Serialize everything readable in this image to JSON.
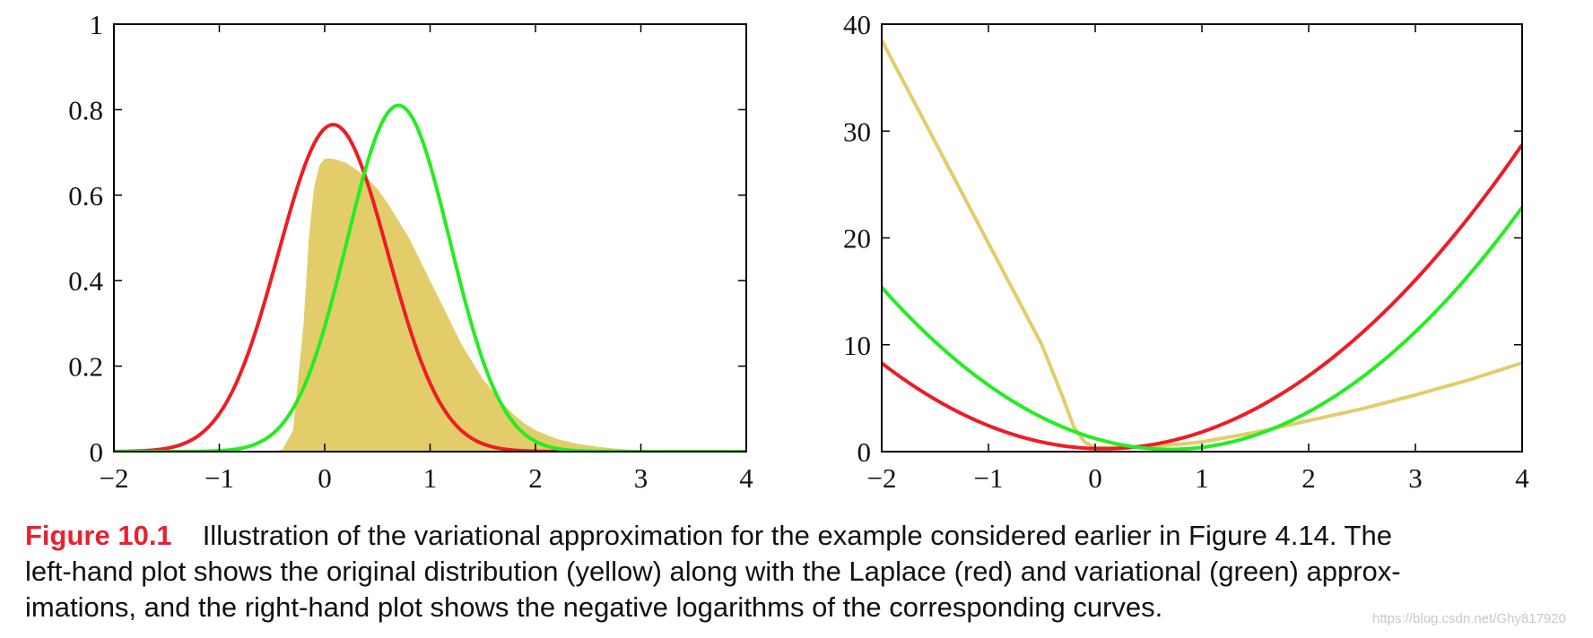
{
  "chart_data": [
    {
      "type": "line",
      "panel": "left",
      "xlim": [
        -2,
        4
      ],
      "ylim": [
        0,
        1
      ],
      "x_ticks": [
        "−2",
        "−1",
        "0",
        "1",
        "2",
        "3",
        "4"
      ],
      "x_tick_values": [
        -2,
        -1,
        0,
        1,
        2,
        3,
        4
      ],
      "y_ticks": [
        "0",
        "0.2",
        "0.4",
        "0.6",
        "0.8",
        "1"
      ],
      "y_tick_values": [
        0,
        0.2,
        0.4,
        0.6,
        0.8,
        1
      ],
      "series": [
        {
          "name": "original distribution (yellow)",
          "color": "#e3cd6a",
          "style": "filled-area",
          "x": [
            -2,
            -0.5,
            -0.4,
            -0.3,
            -0.2,
            -0.15,
            -0.1,
            -0.05,
            0,
            0.05,
            0.1,
            0.2,
            0.3,
            0.4,
            0.5,
            0.6,
            0.7,
            0.8,
            0.9,
            1.0,
            1.1,
            1.2,
            1.3,
            1.4,
            1.5,
            1.6,
            1.7,
            1.8,
            1.9,
            2.0,
            2.2,
            2.4,
            2.6,
            2.8,
            3.0,
            3.2,
            3.5,
            4
          ],
          "values": [
            0,
            0,
            0.005,
            0.05,
            0.3,
            0.5,
            0.62,
            0.67,
            0.685,
            0.686,
            0.684,
            0.676,
            0.66,
            0.64,
            0.615,
            0.58,
            0.54,
            0.5,
            0.45,
            0.4,
            0.35,
            0.3,
            0.25,
            0.21,
            0.17,
            0.14,
            0.11,
            0.085,
            0.065,
            0.05,
            0.03,
            0.018,
            0.011,
            0.006,
            0.003,
            0.0015,
            0.0004,
            0
          ]
        },
        {
          "name": "Laplace approximation (red)",
          "color": "#ee1c25",
          "style": "gaussian",
          "mean": 0.08,
          "std": 0.52,
          "peak": 0.765
        },
        {
          "name": "variational approximation (green)",
          "color": "#22ee22",
          "style": "gaussian",
          "mean": 0.7,
          "std": 0.49,
          "peak": 0.81
        }
      ]
    },
    {
      "type": "line",
      "panel": "right",
      "xlim": [
        -2,
        4
      ],
      "ylim": [
        0,
        40
      ],
      "x_ticks": [
        "−2",
        "−1",
        "0",
        "1",
        "2",
        "3",
        "4"
      ],
      "x_tick_values": [
        -2,
        -1,
        0,
        1,
        2,
        3,
        4
      ],
      "y_ticks": [
        "0",
        "10",
        "20",
        "30",
        "40"
      ],
      "y_tick_values": [
        0,
        10,
        20,
        30,
        40
      ],
      "series": [
        {
          "name": "negative log of original (yellow)",
          "color": "#e3cd6a",
          "x": [
            -2,
            -1.5,
            -1.0,
            -0.5,
            -0.3,
            -0.2,
            -0.1,
            0,
            0.2,
            0.4,
            0.6,
            0.8,
            1.0,
            1.5,
            2.0,
            2.5,
            3.0,
            3.5,
            4.0
          ],
          "values": [
            38.5,
            29.0,
            19.5,
            10.0,
            5.0,
            2.3,
            0.9,
            0.38,
            0.39,
            0.45,
            0.55,
            0.7,
            0.9,
            1.8,
            2.9,
            4.0,
            5.3,
            6.7,
            8.3
          ]
        },
        {
          "name": "negative log of Laplace (red)",
          "color": "#ee1c25",
          "style": "quadratic",
          "center": 0.08,
          "scale": 1.852,
          "offset": 0.27,
          "end_value": 28.5
        },
        {
          "name": "negative log of variational (green)",
          "color": "#22ee22",
          "style": "quadratic",
          "center": 0.7,
          "scale": 2.08,
          "offset": 0.21,
          "end_value": 22.5
        }
      ]
    }
  ],
  "caption": {
    "figure_label": "Figure 10.1",
    "line1": "Illustration of the variational approximation for the example considered earlier in Figure 4.14. The",
    "line2": "left-hand plot shows the original distribution (yellow) along with the Laplace (red) and variational (green) approx-",
    "line3": "imations, and the right-hand plot shows the negative logarithms of the corresponding curves."
  },
  "watermark": "https://blog.csdn.net/Ghy817920"
}
